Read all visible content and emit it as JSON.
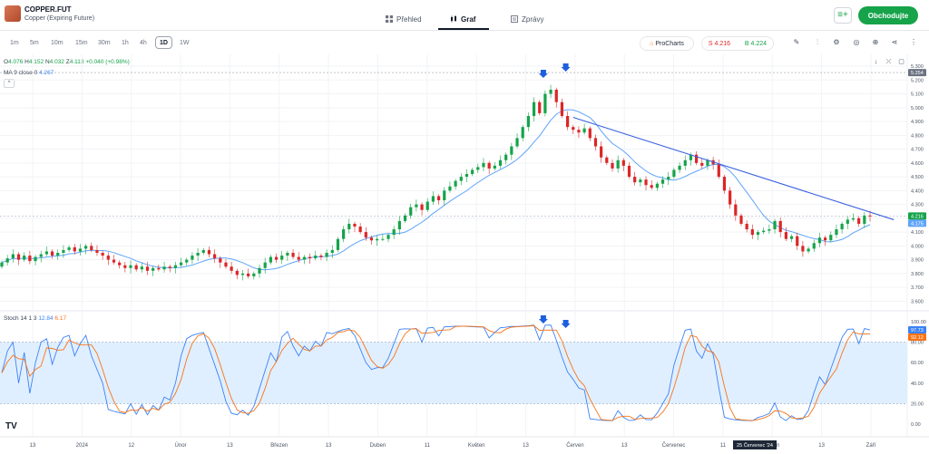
{
  "header": {
    "symbol": "COPPER.FUT",
    "subtitle": "Copper (Expiring Future)",
    "tabs": [
      {
        "label": "Přehled",
        "icon": "grid-icon"
      },
      {
        "label": "Graf",
        "icon": "candles-icon"
      },
      {
        "label": "Zprávy",
        "icon": "news-icon"
      }
    ],
    "trade_label": "Obchodujte"
  },
  "toolbar": {
    "timeframes": [
      "1m",
      "5m",
      "10m",
      "15m",
      "30m",
      "1h",
      "4h",
      "1D",
      "1W"
    ],
    "active_timeframe": "1D",
    "procharts_label": "ProCharts",
    "sell_label": "S 4.216",
    "buy_label": "B 4.224"
  },
  "legend": {
    "open_key": "O",
    "open": "4.076",
    "high_key": "H",
    "high": "4.152",
    "low_key": "N",
    "low": "4.032",
    "close_key": "Z",
    "close": "4.113",
    "change": "+0.040 (+0.98%)",
    "ma_label": "MA 9 close 0",
    "ma_value": "4.267",
    "stoch_label": "Stoch 14 1 3",
    "stoch_k": "12.84",
    "stoch_d": "6.17"
  },
  "colors": {
    "up": "#16a34a",
    "down": "#dc2626",
    "ma": "#60a5fa",
    "trend": "#3b63e0",
    "stoch_k": "#3b82f6",
    "stoch_d": "#f97316",
    "band": "#e0efff",
    "arrow": "#1d5fe0"
  },
  "chart_data": [
    {
      "type": "candlestick",
      "symbol": "COPPER.FUT",
      "ylim": [
        3.55,
        5.32
      ],
      "y_ticks": [
        "3.600",
        "3.700",
        "3.800",
        "3.900",
        "4.000",
        "4.100",
        "4.200",
        "4.300",
        "4.400",
        "4.500",
        "4.600",
        "4.700",
        "4.800",
        "4.900",
        "5.000",
        "5.100",
        "5.200",
        "5.300"
      ],
      "x_labels": [
        "13",
        "2024",
        "12",
        "Únor",
        "13",
        "Březen",
        "13",
        "Duben",
        "11",
        "Květen",
        "13",
        "Červen",
        "13",
        "Červenec",
        "11",
        "Srpen",
        "13",
        "Září"
      ],
      "last_price_labels": [
        {
          "value": 4.216,
          "label": "4.216",
          "color": "#16a34a"
        },
        {
          "value": 4.175,
          "label": "4.175",
          "color": "#60a5fa"
        },
        {
          "value": 5.254,
          "label": "5.254",
          "color": "#6b7280"
        }
      ],
      "reference_line": 5.254,
      "closes": [
        3.88,
        3.91,
        3.94,
        3.9,
        3.93,
        3.89,
        3.92,
        3.94,
        3.96,
        3.93,
        3.95,
        3.97,
        3.99,
        3.96,
        3.98,
        4.0,
        3.97,
        3.95,
        3.93,
        3.9,
        3.88,
        3.86,
        3.84,
        3.86,
        3.83,
        3.85,
        3.82,
        3.84,
        3.83,
        3.85,
        3.84,
        3.86,
        3.88,
        3.9,
        3.93,
        3.95,
        3.97,
        3.94,
        3.91,
        3.88,
        3.85,
        3.82,
        3.79,
        3.8,
        3.78,
        3.8,
        3.84,
        3.88,
        3.92,
        3.9,
        3.93,
        3.95,
        3.92,
        3.9,
        3.92,
        3.91,
        3.93,
        3.92,
        3.95,
        3.97,
        4.05,
        4.12,
        4.16,
        4.14,
        4.1,
        4.06,
        4.04,
        4.05,
        4.05,
        4.08,
        4.12,
        4.18,
        4.22,
        4.28,
        4.3,
        4.26,
        4.32,
        4.36,
        4.33,
        4.4,
        4.43,
        4.47,
        4.5,
        4.52,
        4.55,
        4.57,
        4.6,
        4.56,
        4.58,
        4.62,
        4.66,
        4.72,
        4.78,
        4.86,
        4.94,
        5.04,
        4.96,
        5.1,
        5.13,
        5.04,
        4.94,
        4.86,
        4.84,
        4.82,
        4.85,
        4.78,
        4.72,
        4.64,
        4.6,
        4.56,
        4.62,
        4.58,
        4.5,
        4.46,
        4.48,
        4.44,
        4.42,
        4.45,
        4.48,
        4.5,
        4.55,
        4.58,
        4.62,
        4.66,
        4.6,
        4.58,
        4.62,
        4.59,
        4.5,
        4.4,
        4.3,
        4.22,
        4.16,
        4.12,
        4.08,
        4.1,
        4.11,
        4.12,
        4.18,
        4.1,
        4.05,
        4.07,
        4.0,
        3.96,
        3.98,
        4.02,
        4.06,
        4.04,
        4.08,
        4.12,
        4.16,
        4.19,
        4.2,
        4.16,
        4.22,
        4.216
      ],
      "ma": {
        "name": "MA 9 close 0",
        "period": 9
      },
      "trendline": {
        "from_index": 102,
        "from_value": 4.93,
        "to_index": 156,
        "to_value": 4.17
      },
      "arrows": [
        97,
        101
      ]
    },
    {
      "type": "line",
      "name": "Stoch 14 1 3",
      "ylim": [
        0,
        100
      ],
      "y_ticks": [
        "0.00",
        "20.00",
        "40.00",
        "60.00",
        "80.00",
        "100.00"
      ],
      "bands": [
        20,
        80
      ],
      "last_labels": [
        {
          "label": "97.73",
          "color": "#3b82f6"
        },
        {
          "label": "92.12",
          "color": "#f97316"
        }
      ],
      "arrows": [
        97,
        101
      ],
      "hover_label": "25 Červenec '24"
    }
  ]
}
